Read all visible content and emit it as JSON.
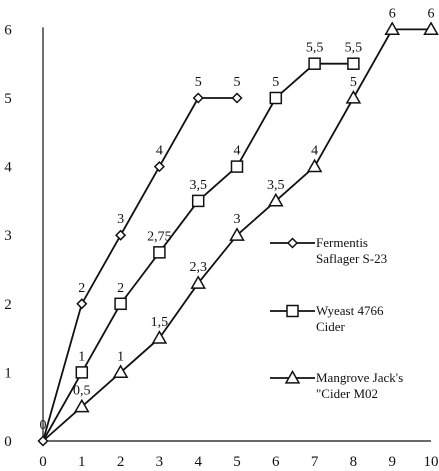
{
  "chart_data": {
    "type": "line",
    "title": "",
    "xlabel": "",
    "ylabel": "",
    "x": [
      0,
      1,
      2,
      3,
      4,
      5,
      6,
      7,
      8,
      9,
      10
    ],
    "xlim": [
      0,
      10
    ],
    "ylim": [
      0,
      6
    ],
    "x_ticks": [
      0,
      1,
      2,
      3,
      4,
      5,
      6,
      7,
      8,
      9,
      10
    ],
    "y_ticks": [
      0,
      1,
      2,
      3,
      4,
      5,
      6
    ],
    "grid": false,
    "legend_position": "right",
    "series": [
      {
        "name": "Fermentis Saflager S-23",
        "legend_lines": [
          "Fermentis",
          "Saflager S-23"
        ],
        "marker": "diamond",
        "x": [
          0,
          1,
          2,
          3,
          4,
          5
        ],
        "y": [
          0,
          2,
          3,
          4,
          5,
          5
        ],
        "labels": [
          "0",
          "2",
          "3",
          "4",
          "5",
          "5"
        ]
      },
      {
        "name": "Wyeast 4766 Cider",
        "legend_lines": [
          "Wyeast 4766",
          "Cider"
        ],
        "marker": "square",
        "x": [
          1,
          2,
          3,
          4,
          5,
          6,
          7,
          8
        ],
        "y": [
          1,
          2,
          2.75,
          3.5,
          4,
          5,
          5.5,
          5.5
        ],
        "labels": [
          "1",
          "2",
          "2,75",
          "3,5",
          "4",
          "5",
          "5,5",
          "5,5"
        ]
      },
      {
        "name": "Mangrove Jack's \"Cider M02",
        "legend_lines": [
          "Mangrove Jack's",
          "\"Cider M02"
        ],
        "marker": "triangle",
        "x": [
          1,
          2,
          3,
          4,
          5,
          6,
          7,
          8,
          9,
          10
        ],
        "y": [
          0.5,
          1,
          1.5,
          2.3,
          3,
          3.5,
          4,
          5,
          6,
          6
        ],
        "labels": [
          "0,5",
          "1",
          "1,5",
          "2,3",
          "3",
          "3,5",
          "4",
          "5",
          "6",
          "6"
        ]
      }
    ]
  }
}
